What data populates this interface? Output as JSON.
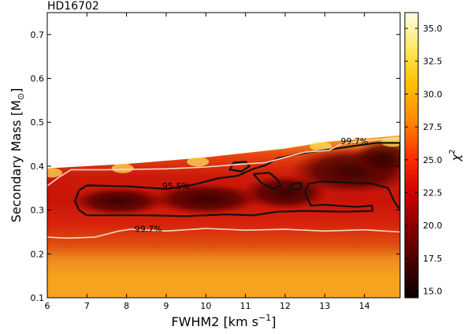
{
  "chart_data": {
    "type": "heatmap",
    "title": "HD16702",
    "xlabel": "FWHM2 [km s",
    "xlabel_sup": "−1",
    "xlabel_end": "]",
    "ylabel": "Secondary Mass [M",
    "ylabel_sub": "⊙",
    "ylabel_end": "]",
    "xlim": [
      6,
      14.9
    ],
    "ylim": [
      0.1,
      0.75
    ],
    "xticks": [
      6,
      7,
      8,
      9,
      10,
      11,
      12,
      13,
      14
    ],
    "yticks": [
      0.1,
      0.2,
      0.3,
      0.4,
      0.5,
      0.6,
      0.7
    ],
    "colorbar": {
      "label": "χ",
      "label_sup": "2",
      "range": [
        14.5,
        36.2
      ],
      "ticks": [
        15.0,
        17.5,
        20.0,
        22.5,
        25.0,
        27.5,
        30.0,
        32.5,
        35.0
      ],
      "colormap": "hot"
    },
    "upper_boundary": [
      [
        6.0,
        0.395
      ],
      [
        8.0,
        0.405
      ],
      [
        10.0,
        0.42
      ],
      [
        12.0,
        0.44
      ],
      [
        13.0,
        0.455
      ],
      [
        14.9,
        0.47
      ]
    ],
    "contours": [
      {
        "label": "95.5%",
        "label_pos": [
          8.9,
          0.348
        ],
        "color": "#111111",
        "rings": [
          [
            [
              6.8,
              0.345
            ],
            [
              7.0,
              0.356
            ],
            [
              8.0,
              0.354
            ],
            [
              9.0,
              0.348
            ],
            [
              9.7,
              0.358
            ],
            [
              10.3,
              0.372
            ],
            [
              10.8,
              0.378
            ],
            [
              11.2,
              0.394
            ],
            [
              11.5,
              0.402
            ],
            [
              11.8,
              0.418
            ],
            [
              12.5,
              0.43
            ],
            [
              13.5,
              0.443
            ],
            [
              14.3,
              0.453
            ],
            [
              14.9,
              0.453
            ],
            [
              14.9,
              0.3
            ],
            [
              14.75,
              0.32
            ],
            [
              14.6,
              0.35
            ],
            [
              14.2,
              0.36
            ],
            [
              13.5,
              0.363
            ],
            [
              12.9,
              0.365
            ],
            [
              12.6,
              0.36
            ],
            [
              12.5,
              0.34
            ],
            [
              12.65,
              0.31
            ],
            [
              13.0,
              0.312
            ],
            [
              13.8,
              0.307
            ],
            [
              14.2,
              0.31
            ],
            [
              14.2,
              0.298
            ],
            [
              13.5,
              0.296
            ],
            [
              12.5,
              0.298
            ],
            [
              11.8,
              0.296
            ],
            [
              11.2,
              0.288
            ],
            [
              10.5,
              0.29
            ],
            [
              9.5,
              0.286
            ],
            [
              8.5,
              0.288
            ],
            [
              7.5,
              0.288
            ],
            [
              7.0,
              0.288
            ],
            [
              6.8,
              0.3
            ],
            [
              6.7,
              0.32
            ],
            [
              6.8,
              0.345
            ]
          ],
          [
            [
              10.7,
              0.408
            ],
            [
              11.0,
              0.41
            ],
            [
              11.1,
              0.4
            ],
            [
              10.9,
              0.388
            ],
            [
              10.6,
              0.392
            ],
            [
              10.7,
              0.408
            ]
          ],
          [
            [
              11.2,
              0.382
            ],
            [
              11.6,
              0.385
            ],
            [
              11.8,
              0.37
            ],
            [
              11.9,
              0.356
            ],
            [
              11.7,
              0.348
            ],
            [
              11.4,
              0.362
            ],
            [
              11.2,
              0.382
            ]
          ],
          [
            [
              12.2,
              0.36
            ],
            [
              12.4,
              0.362
            ],
            [
              12.4,
              0.35
            ],
            [
              12.2,
              0.346
            ],
            [
              12.1,
              0.352
            ],
            [
              12.2,
              0.36
            ]
          ]
        ]
      },
      {
        "label": "99.7%",
        "label_pos": [
          13.4,
          0.45
        ],
        "color": "#f0d8c8",
        "rings": [
          [
            [
              6.0,
              0.355
            ],
            [
              6.3,
              0.375
            ],
            [
              6.6,
              0.392
            ],
            [
              7.5,
              0.392
            ],
            [
              9.0,
              0.394
            ],
            [
              10.0,
              0.398
            ],
            [
              11.0,
              0.405
            ],
            [
              11.5,
              0.408
            ],
            [
              12.0,
              0.42
            ],
            [
              12.5,
              0.432
            ],
            [
              13.1,
              0.436
            ],
            [
              13.4,
              0.45
            ],
            [
              14.0,
              0.458
            ],
            [
              14.5,
              0.462
            ],
            [
              14.9,
              0.465
            ]
          ]
        ]
      },
      {
        "label": "99.7%",
        "label_pos": [
          8.2,
          0.25
        ],
        "color": "#f0d8c8",
        "rings": [
          [
            [
              6.0,
              0.238
            ],
            [
              6.5,
              0.236
            ],
            [
              7.2,
              0.238
            ],
            [
              7.8,
              0.252
            ],
            [
              8.1,
              0.256
            ],
            [
              9.0,
              0.252
            ],
            [
              10.0,
              0.258
            ],
            [
              11.0,
              0.254
            ],
            [
              12.0,
              0.256
            ],
            [
              13.0,
              0.252
            ],
            [
              14.0,
              0.255
            ],
            [
              14.9,
              0.25
            ]
          ]
        ]
      }
    ]
  }
}
